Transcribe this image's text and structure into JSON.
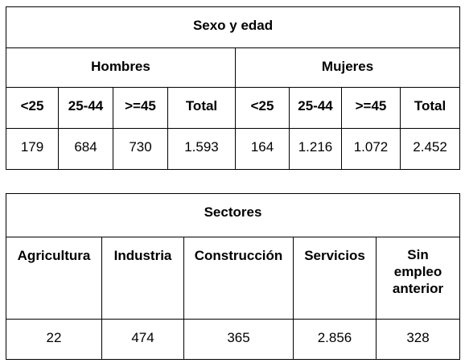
{
  "table1": {
    "title": "Sexo y edad",
    "groups": [
      "Hombres",
      "Mujeres"
    ],
    "age_headers": [
      "<25",
      "25-44",
      ">=45",
      "Total",
      "<25",
      "25-44",
      ">=45",
      "Total"
    ],
    "values": [
      "179",
      "684",
      "730",
      "1.593",
      "164",
      "1.216",
      "1.072",
      "2.452"
    ]
  },
  "table2": {
    "title": "Sectores",
    "headers": [
      "Agricultura",
      "Industria",
      "Construcción",
      "Servicios",
      "Sin empleo anterior"
    ],
    "headers_lines": {
      "sin_empleo": [
        "Sin",
        "empleo",
        "anterior"
      ]
    },
    "values": [
      "22",
      "474",
      "365",
      "2.856",
      "328"
    ]
  }
}
